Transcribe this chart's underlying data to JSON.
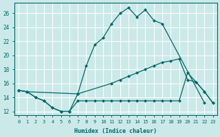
{
  "xlabel": "Humidex (Indice chaleur)",
  "xlim": [
    -0.5,
    23.5
  ],
  "ylim": [
    11.5,
    27.5
  ],
  "xticks": [
    0,
    1,
    2,
    3,
    4,
    5,
    6,
    7,
    8,
    9,
    10,
    11,
    12,
    13,
    14,
    15,
    16,
    17,
    18,
    19,
    20,
    21,
    22,
    23
  ],
  "yticks": [
    12,
    14,
    16,
    18,
    20,
    22,
    24,
    26
  ],
  "bg_color": "#cce9e9",
  "grid_color": "#ffffff",
  "line_color": "#006666",
  "series1_x": [
    0,
    1,
    2,
    3,
    4,
    5,
    6,
    7,
    8,
    9,
    10,
    11,
    12,
    13,
    14,
    15,
    16,
    17,
    22
  ],
  "series1_y": [
    15.0,
    14.8,
    14.0,
    13.5,
    12.5,
    12.0,
    12.0,
    14.5,
    18.5,
    21.5,
    22.5,
    24.5,
    26.0,
    26.8,
    25.5,
    26.5,
    25.0,
    24.5,
    13.2
  ],
  "series2_x": [
    0,
    1,
    7,
    11,
    12,
    13,
    14,
    15,
    16,
    17,
    18,
    19,
    20,
    21,
    22,
    23
  ],
  "series2_y": [
    15.0,
    14.8,
    14.5,
    16.0,
    16.5,
    17.0,
    17.5,
    18.0,
    18.5,
    19.0,
    19.2,
    19.5,
    16.5,
    16.2,
    14.8,
    13.2
  ],
  "series3_x": [
    0,
    1,
    2,
    3,
    4,
    5,
    6,
    7,
    8,
    9,
    10,
    11,
    12,
    13,
    14,
    15,
    16,
    17,
    18,
    19,
    20,
    21,
    22,
    23
  ],
  "series3_y": [
    15.0,
    14.8,
    14.0,
    13.5,
    12.5,
    12.0,
    12.0,
    13.5,
    13.5,
    13.5,
    13.5,
    13.5,
    13.5,
    13.5,
    13.5,
    13.5,
    13.5,
    13.5,
    13.5,
    13.5,
    17.5,
    16.2,
    14.8,
    13.2
  ]
}
